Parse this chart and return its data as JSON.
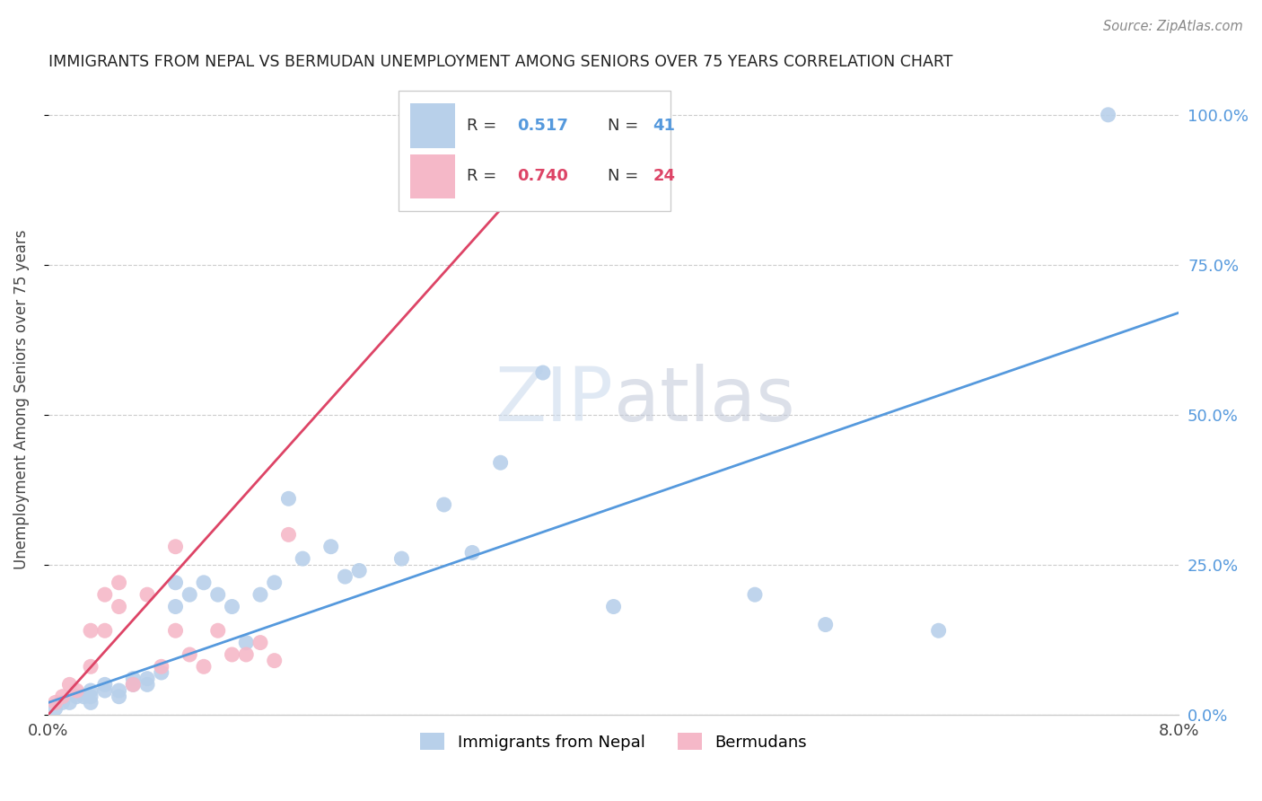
{
  "title": "IMMIGRANTS FROM NEPAL VS BERMUDAN UNEMPLOYMENT AMONG SENIORS OVER 75 YEARS CORRELATION CHART",
  "source": "Source: ZipAtlas.com",
  "ylabel": "Unemployment Among Seniors over 75 years",
  "x_min": 0.0,
  "x_max": 0.08,
  "y_min": 0.0,
  "y_max": 1.05,
  "watermark_zip": "ZIP",
  "watermark_atlas": "atlas",
  "legend_labels": [
    "Immigrants from Nepal",
    "Bermudans"
  ],
  "series1_color": "#b8d0ea",
  "series2_color": "#f5b8c8",
  "line1_color": "#5599dd",
  "line2_color": "#dd4466",
  "r1": "0.517",
  "n1": "41",
  "r2": "0.740",
  "n2": "24",
  "yticks": [
    0.0,
    0.25,
    0.5,
    0.75,
    1.0
  ],
  "ytick_labels": [
    "0.0%",
    "25.0%",
    "50.0%",
    "75.0%",
    "100.0%"
  ],
  "xtick_labels": [
    "0.0%",
    "",
    "",
    "",
    "",
    "",
    "",
    "",
    "8.0%"
  ],
  "scatter1_x": [
    0.0005,
    0.001,
    0.0015,
    0.002,
    0.0025,
    0.003,
    0.003,
    0.003,
    0.004,
    0.004,
    0.005,
    0.005,
    0.006,
    0.006,
    0.007,
    0.007,
    0.008,
    0.009,
    0.009,
    0.01,
    0.011,
    0.012,
    0.013,
    0.014,
    0.015,
    0.016,
    0.017,
    0.018,
    0.02,
    0.021,
    0.022,
    0.025,
    0.028,
    0.03,
    0.032,
    0.035,
    0.04,
    0.05,
    0.055,
    0.063,
    0.075
  ],
  "scatter1_y": [
    0.01,
    0.02,
    0.02,
    0.03,
    0.03,
    0.02,
    0.03,
    0.04,
    0.04,
    0.05,
    0.03,
    0.04,
    0.05,
    0.06,
    0.05,
    0.06,
    0.07,
    0.18,
    0.22,
    0.2,
    0.22,
    0.2,
    0.18,
    0.12,
    0.2,
    0.22,
    0.36,
    0.26,
    0.28,
    0.23,
    0.24,
    0.26,
    0.35,
    0.27,
    0.42,
    0.57,
    0.18,
    0.2,
    0.15,
    0.14,
    1.0
  ],
  "scatter2_x": [
    0.0005,
    0.001,
    0.0015,
    0.002,
    0.003,
    0.003,
    0.004,
    0.004,
    0.005,
    0.005,
    0.006,
    0.007,
    0.008,
    0.009,
    0.009,
    0.01,
    0.011,
    0.012,
    0.013,
    0.014,
    0.015,
    0.016,
    0.017,
    0.038
  ],
  "scatter2_y": [
    0.02,
    0.03,
    0.05,
    0.04,
    0.08,
    0.14,
    0.14,
    0.2,
    0.18,
    0.22,
    0.05,
    0.2,
    0.08,
    0.14,
    0.28,
    0.1,
    0.08,
    0.14,
    0.1,
    0.1,
    0.12,
    0.09,
    0.3,
    0.97
  ],
  "line1_x": [
    0.0,
    0.08
  ],
  "line1_y": [
    0.02,
    0.67
  ],
  "line2_x": [
    0.0,
    0.038
  ],
  "line2_y": [
    0.0,
    1.0
  ]
}
